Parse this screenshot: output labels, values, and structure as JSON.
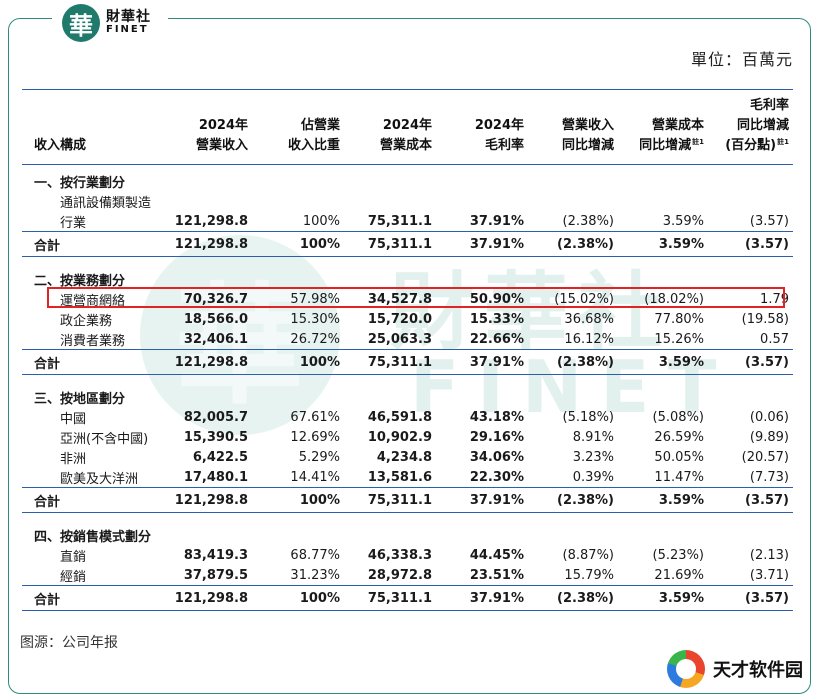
{
  "brand": {
    "mark": "華",
    "name_cn": "財華社",
    "name_en": "FINET"
  },
  "unit": "單位：百萬元",
  "headers": [
    [
      "收入構成"
    ],
    [
      "2024年",
      "營業收入"
    ],
    [
      "佔營業",
      "收入比重"
    ],
    [
      "2024年",
      "營業成本"
    ],
    [
      "2024年",
      "毛利率"
    ],
    [
      "營業收入",
      "同比增減"
    ],
    [
      "營業成本",
      "同比增減"
    ],
    [
      "毛利率",
      "同比增減",
      "(百分點)"
    ]
  ],
  "header_note": "註1",
  "rows": [
    {
      "type": "section",
      "label": "一、按行業劃分"
    },
    {
      "type": "item",
      "label": "通訊設備類製造",
      "cells": [
        "",
        "",
        "",
        "",
        "",
        "",
        ""
      ]
    },
    {
      "type": "item",
      "label": "行業",
      "indent": "deep",
      "cells": [
        "121,298.8",
        "100%",
        "75,311.1",
        "37.91%",
        "(2.38%)",
        "3.59%",
        "(3.57)"
      ]
    },
    {
      "type": "total",
      "label": "合計",
      "cells": [
        "121,298.8",
        "100%",
        "75,311.1",
        "37.91%",
        "(2.38%)",
        "3.59%",
        "(3.57)"
      ]
    },
    {
      "type": "section",
      "label": "二、按業務劃分"
    },
    {
      "type": "item",
      "label": "運營商網絡",
      "cells": [
        "70,326.7",
        "57.98%",
        "34,527.8",
        "50.90%",
        "(15.02%)",
        "(18.02%)",
        "1.79"
      ]
    },
    {
      "type": "item",
      "label": "政企業務",
      "cells": [
        "18,566.0",
        "15.30%",
        "15,720.0",
        "15.33%",
        "36.68%",
        "77.80%",
        "(19.58)"
      ]
    },
    {
      "type": "item",
      "label": "消費者業務",
      "cells": [
        "32,406.1",
        "26.72%",
        "25,063.3",
        "22.66%",
        "16.12%",
        "15.26%",
        "0.57"
      ]
    },
    {
      "type": "total",
      "label": "合計",
      "cells": [
        "121,298.8",
        "100%",
        "75,311.1",
        "37.91%",
        "(2.38%)",
        "3.59%",
        "(3.57)"
      ]
    },
    {
      "type": "section",
      "label": "三、按地區劃分"
    },
    {
      "type": "item",
      "label": "中國",
      "cells": [
        "82,005.7",
        "67.61%",
        "46,591.8",
        "43.18%",
        "(5.18%)",
        "(5.08%)",
        "(0.06)"
      ]
    },
    {
      "type": "item",
      "label": "亞洲(不含中國)",
      "cells": [
        "15,390.5",
        "12.69%",
        "10,902.9",
        "29.16%",
        "8.91%",
        "26.59%",
        "(9.89)"
      ]
    },
    {
      "type": "item",
      "label": "非洲",
      "cells": [
        "6,422.5",
        "5.29%",
        "4,234.8",
        "34.06%",
        "3.23%",
        "50.05%",
        "(20.57)"
      ]
    },
    {
      "type": "item",
      "label": "歐美及大洋洲",
      "cells": [
        "17,480.1",
        "14.41%",
        "13,581.6",
        "22.30%",
        "0.39%",
        "11.47%",
        "(7.73)"
      ]
    },
    {
      "type": "total",
      "label": "合計",
      "cells": [
        "121,298.8",
        "100%",
        "75,311.1",
        "37.91%",
        "(2.38%)",
        "3.59%",
        "(3.57)"
      ]
    },
    {
      "type": "section",
      "label": "四、按銷售模式劃分"
    },
    {
      "type": "item",
      "label": "直銷",
      "cells": [
        "83,419.3",
        "68.77%",
        "46,338.3",
        "44.45%",
        "(8.87%)",
        "(5.23%)",
        "(2.13)"
      ]
    },
    {
      "type": "item",
      "label": "經銷",
      "cells": [
        "37,879.5",
        "31.23%",
        "28,972.8",
        "23.51%",
        "15.79%",
        "21.69%",
        "(3.71)"
      ]
    },
    {
      "type": "total",
      "label": "合計",
      "cells": [
        "121,298.8",
        "100%",
        "75,311.1",
        "37.91%",
        "(2.38%)",
        "3.59%",
        "(3.57)"
      ]
    }
  ],
  "source": "图源：公司年报",
  "badge": {
    "text": "天才软件园"
  },
  "colors": {
    "accent": "#2f8a7e",
    "rule": "#2b5fa8",
    "highlight": "#e02424"
  }
}
